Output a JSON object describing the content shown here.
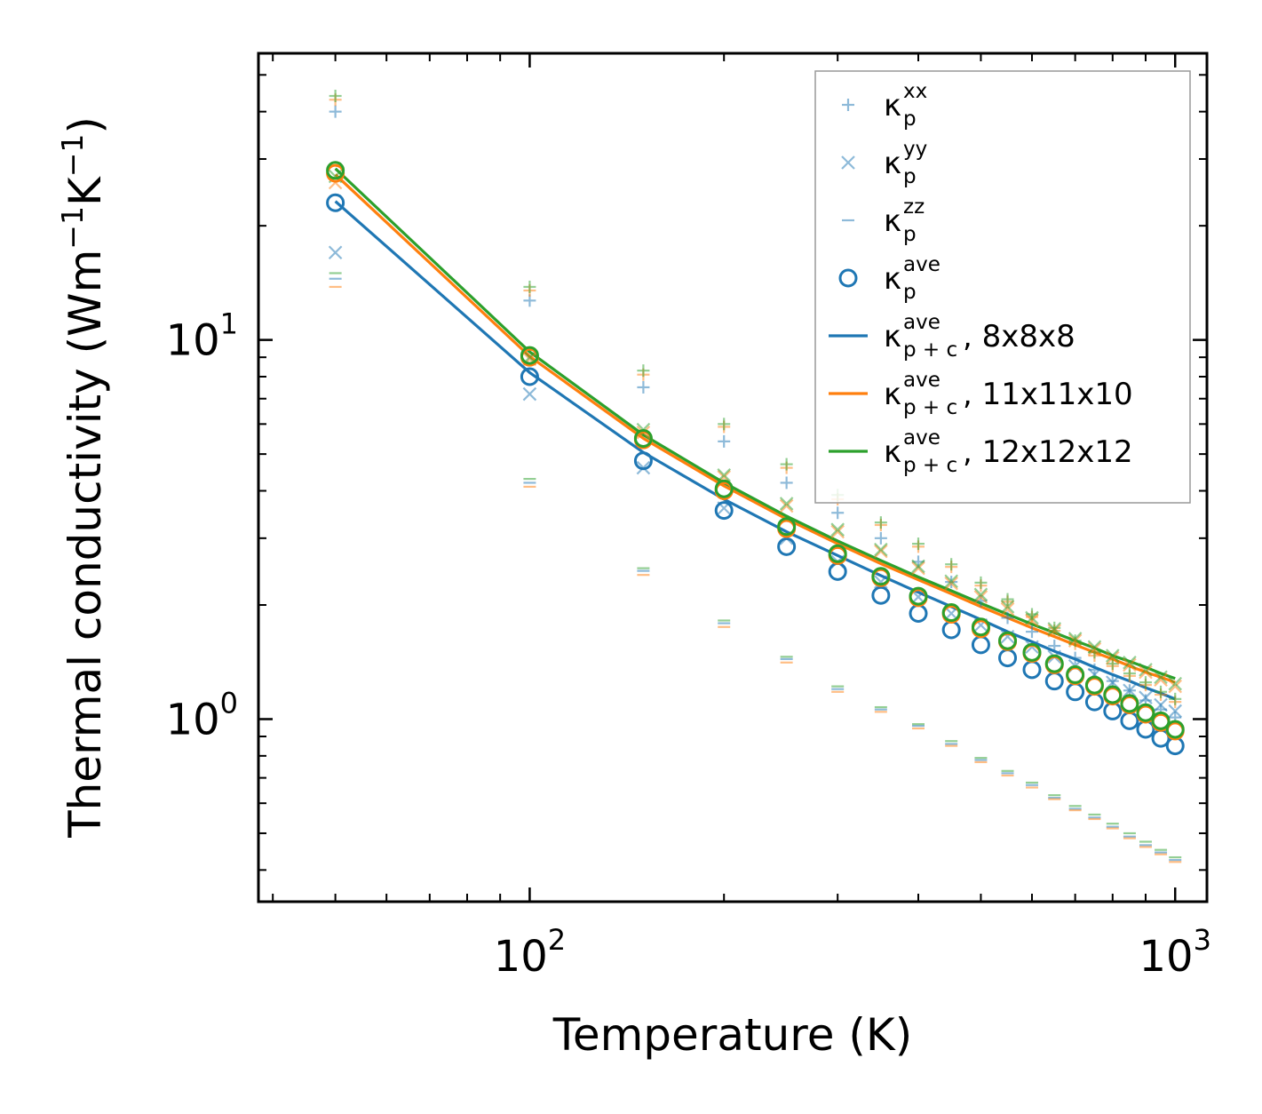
{
  "chart_data": {
    "type": "scatter",
    "xscale": "log",
    "yscale": "log",
    "xlabel": "Temperature (K)",
    "ylabel": {
      "base": "Thermal conductivity (Wm",
      "exp1": "−1",
      "mid": "K",
      "exp2": "−1",
      "end": ")"
    },
    "xlim": [
      38,
      1120
    ],
    "ylim": [
      0.33,
      57
    ],
    "xticks": [
      {
        "value": 100,
        "base": "10",
        "exp": "2"
      },
      {
        "value": 1000,
        "base": "10",
        "exp": "3"
      }
    ],
    "yticks": [
      {
        "value": 1,
        "base": "10",
        "exp": "0"
      },
      {
        "value": 10,
        "base": "10",
        "exp": "1"
      }
    ],
    "x": [
      50,
      100,
      150,
      200,
      250,
      300,
      350,
      400,
      450,
      500,
      550,
      600,
      650,
      700,
      750,
      800,
      850,
      900,
      950,
      1000
    ],
    "colors": {
      "c8": "#1f77b4",
      "c11": "#ff7f0e",
      "c12": "#2ca02c"
    },
    "series": [
      {
        "name": "pxx 8x8x8",
        "kind": "plus",
        "color": "c8",
        "alpha": 0.5,
        "values": [
          40,
          12.7,
          7.5,
          5.4,
          4.2,
          3.5,
          3.0,
          2.6,
          2.3,
          2.05,
          1.85,
          1.7,
          1.56,
          1.45,
          1.35,
          1.26,
          1.19,
          1.12,
          1.06,
          1.01
        ]
      },
      {
        "name": "pxx 11x11x10",
        "kind": "plus",
        "color": "c11",
        "alpha": 0.5,
        "values": [
          43,
          13.5,
          8.1,
          5.9,
          4.6,
          3.8,
          3.25,
          2.85,
          2.52,
          2.25,
          2.04,
          1.86,
          1.71,
          1.58,
          1.47,
          1.38,
          1.3,
          1.23,
          1.16,
          1.11
        ]
      },
      {
        "name": "pxx 12x12x12",
        "kind": "plus",
        "color": "c12",
        "alpha": 0.5,
        "values": [
          44,
          13.8,
          8.3,
          6.0,
          4.7,
          3.9,
          3.3,
          2.9,
          2.56,
          2.29,
          2.07,
          1.89,
          1.74,
          1.61,
          1.5,
          1.4,
          1.32,
          1.25,
          1.18,
          1.13
        ]
      },
      {
        "name": "pyy 8x8x8",
        "kind": "cross",
        "color": "c8",
        "alpha": 0.5,
        "values": [
          17,
          7.2,
          4.6,
          3.6,
          3.0,
          2.6,
          2.3,
          2.1,
          1.9,
          1.77,
          1.65,
          1.55,
          1.46,
          1.38,
          1.31,
          1.25,
          1.19,
          1.14,
          1.09,
          1.05
        ]
      },
      {
        "name": "pyy 11x11x10",
        "kind": "cross",
        "color": "c11",
        "alpha": 0.5,
        "values": [
          26,
          8.9,
          5.7,
          4.35,
          3.65,
          3.12,
          2.77,
          2.5,
          2.28,
          2.1,
          1.95,
          1.82,
          1.71,
          1.61,
          1.53,
          1.45,
          1.39,
          1.33,
          1.27,
          1.22
        ]
      },
      {
        "name": "pyy 12x12x12",
        "kind": "cross",
        "color": "c12",
        "alpha": 0.5,
        "values": [
          27,
          9.0,
          5.8,
          4.4,
          3.7,
          3.16,
          2.8,
          2.53,
          2.31,
          2.13,
          1.98,
          1.85,
          1.73,
          1.63,
          1.55,
          1.47,
          1.41,
          1.35,
          1.29,
          1.24
        ]
      },
      {
        "name": "pzz 8x8x8",
        "kind": "dash",
        "color": "c8",
        "alpha": 0.5,
        "values": [
          14.5,
          4.2,
          2.46,
          1.79,
          1.44,
          1.2,
          1.06,
          0.96,
          0.86,
          0.78,
          0.72,
          0.67,
          0.62,
          0.58,
          0.55,
          0.52,
          0.49,
          0.465,
          0.445,
          0.425
        ]
      },
      {
        "name": "pzz 11x11x10",
        "kind": "dash",
        "color": "c11",
        "alpha": 0.5,
        "values": [
          13.8,
          4.1,
          2.4,
          1.75,
          1.41,
          1.18,
          1.045,
          0.945,
          0.85,
          0.77,
          0.71,
          0.66,
          0.615,
          0.575,
          0.545,
          0.515,
          0.485,
          0.46,
          0.44,
          0.42
        ]
      },
      {
        "name": "pzz 12x12x12",
        "kind": "dash",
        "color": "c12",
        "alpha": 0.5,
        "values": [
          15,
          4.3,
          2.5,
          1.82,
          1.46,
          1.22,
          1.075,
          0.97,
          0.875,
          0.79,
          0.73,
          0.68,
          0.63,
          0.59,
          0.56,
          0.53,
          0.5,
          0.475,
          0.452,
          0.432
        ]
      },
      {
        "name": "pave 8x8x8",
        "kind": "circle",
        "color": "c8",
        "alpha": 1,
        "values": [
          23,
          8.0,
          4.8,
          3.55,
          2.85,
          2.45,
          2.12,
          1.9,
          1.72,
          1.57,
          1.45,
          1.35,
          1.26,
          1.18,
          1.11,
          1.05,
          0.99,
          0.94,
          0.89,
          0.85
        ]
      },
      {
        "name": "pave 11x11x10",
        "kind": "circle",
        "color": "c11",
        "alpha": 1,
        "values": [
          27.5,
          9.0,
          5.45,
          4.0,
          3.18,
          2.7,
          2.36,
          2.09,
          1.89,
          1.73,
          1.6,
          1.49,
          1.39,
          1.3,
          1.22,
          1.15,
          1.09,
          1.03,
          0.98,
          0.93
        ]
      },
      {
        "name": "pave 12x12x12",
        "kind": "circle",
        "color": "c12",
        "alpha": 1,
        "values": [
          28,
          9.1,
          5.5,
          4.05,
          3.22,
          2.73,
          2.38,
          2.11,
          1.91,
          1.75,
          1.61,
          1.5,
          1.4,
          1.31,
          1.23,
          1.16,
          1.1,
          1.04,
          0.99,
          0.94
        ]
      },
      {
        "name": "p+c 8x8x8",
        "kind": "line",
        "color": "c8",
        "values": [
          23.2,
          8.2,
          5.05,
          3.8,
          3.12,
          2.7,
          2.39,
          2.16,
          1.98,
          1.83,
          1.7,
          1.6,
          1.51,
          1.44,
          1.37,
          1.31,
          1.26,
          1.21,
          1.17,
          1.13
        ]
      },
      {
        "name": "p+c 11x11x10",
        "kind": "line",
        "color": "c11",
        "values": [
          27.3,
          9.05,
          5.5,
          4.12,
          3.37,
          2.9,
          2.57,
          2.33,
          2.14,
          1.98,
          1.85,
          1.74,
          1.65,
          1.57,
          1.5,
          1.44,
          1.38,
          1.33,
          1.29,
          1.25
        ]
      },
      {
        "name": "p+c 12x12x12",
        "kind": "line",
        "color": "c12",
        "values": [
          28.3,
          9.3,
          5.62,
          4.2,
          3.43,
          2.95,
          2.62,
          2.37,
          2.18,
          2.02,
          1.89,
          1.78,
          1.69,
          1.61,
          1.54,
          1.47,
          1.42,
          1.37,
          1.32,
          1.28
        ]
      }
    ],
    "legend": {
      "placement": "upper right",
      "entries": [
        {
          "kind": "plus",
          "color": "c8",
          "alpha": 0.5,
          "base": "κ",
          "sub": "p",
          "sup": "xx",
          "suffix": ""
        },
        {
          "kind": "cross",
          "color": "c8",
          "alpha": 0.5,
          "base": "κ",
          "sub": "p",
          "sup": "yy",
          "suffix": ""
        },
        {
          "kind": "dash",
          "color": "c8",
          "alpha": 0.5,
          "base": "κ",
          "sub": "p",
          "sup": "zz",
          "suffix": ""
        },
        {
          "kind": "circle",
          "color": "c8",
          "alpha": 1,
          "base": "κ",
          "sub": "p",
          "sup": "ave",
          "suffix": ""
        },
        {
          "kind": "line",
          "color": "c8",
          "alpha": 1,
          "base": "κ",
          "sub": "p + c",
          "sup": "ave",
          "suffix": ", 8x8x8"
        },
        {
          "kind": "line",
          "color": "c11",
          "alpha": 1,
          "base": "κ",
          "sub": "p + c",
          "sup": "ave",
          "suffix": ", 11x11x10"
        },
        {
          "kind": "line",
          "color": "c12",
          "alpha": 1,
          "base": "κ",
          "sub": "p + c",
          "sup": "ave",
          "suffix": ", 12x12x12"
        }
      ]
    }
  }
}
